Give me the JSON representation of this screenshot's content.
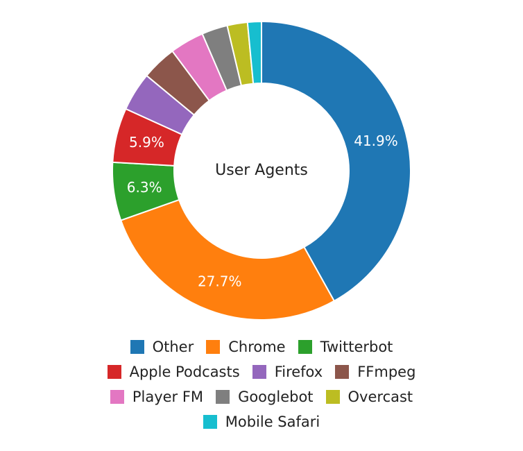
{
  "chart_data": {
    "type": "pie",
    "variant": "donut",
    "title": "User Agents",
    "slices": [
      {
        "label": "Other",
        "value": 41.9,
        "color": "#1f77b4",
        "data_label": "41.9%"
      },
      {
        "label": "Chrome",
        "value": 27.7,
        "color": "#ff7f0e",
        "data_label": "27.7%"
      },
      {
        "label": "Twitterbot",
        "value": 6.3,
        "color": "#2ca02c",
        "data_label": "6.3%"
      },
      {
        "label": "Apple Podcasts",
        "value": 5.9,
        "color": "#d62728",
        "data_label": "5.9%"
      },
      {
        "label": "Firefox",
        "value": 4.2,
        "color": "#9467bd",
        "data_label": ""
      },
      {
        "label": "FFmpeg",
        "value": 3.8,
        "color": "#8c564b",
        "data_label": ""
      },
      {
        "label": "Player FM",
        "value": 3.7,
        "color": "#e377c2",
        "data_label": ""
      },
      {
        "label": "Googlebot",
        "value": 2.8,
        "color": "#7f7f7f",
        "data_label": ""
      },
      {
        "label": "Overcast",
        "value": 2.2,
        "color": "#bcbd22",
        "data_label": ""
      },
      {
        "label": "Mobile Safari",
        "value": 1.5,
        "color": "#17becf",
        "data_label": ""
      }
    ],
    "legend_position": "bottom",
    "legend_rows": [
      [
        "Other",
        "Chrome",
        "Twitterbot"
      ],
      [
        "Apple Podcasts",
        "Firefox",
        "FFmpeg"
      ],
      [
        "Player FM",
        "Googlebot",
        "Overcast"
      ],
      [
        "Mobile Safari"
      ]
    ]
  }
}
